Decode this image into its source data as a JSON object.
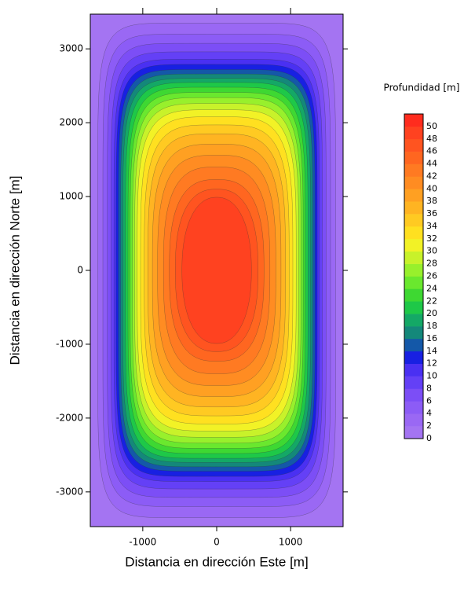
{
  "chart_data": {
    "type": "contour",
    "x_label": "Distancia en dirección Este [m]",
    "y_label": "Distancia en dirección Norte [m]",
    "colorbar_title": "Profundidad [m]",
    "xlim": [
      -1710,
      1710
    ],
    "ylim": [
      -3470,
      3470
    ],
    "xticks": [
      -1000,
      0,
      1000
    ],
    "yticks": [
      -3000,
      -2000,
      -1000,
      0,
      1000,
      2000,
      3000
    ],
    "levels": [
      0,
      2,
      4,
      6,
      8,
      10,
      12,
      14,
      16,
      18,
      20,
      22,
      24,
      26,
      28,
      30,
      32,
      34,
      36,
      38,
      40,
      42,
      44,
      46,
      48,
      50
    ],
    "colors": [
      "#a474f2",
      "#9a68f4",
      "#8c5cf6",
      "#7c4ef6",
      "#6440f6",
      "#4a30f2",
      "#1820e2",
      "#1458a8",
      "#14887a",
      "#14a866",
      "#1ec848",
      "#3ed832",
      "#6ae82e",
      "#98f02c",
      "#c8f22a",
      "#f2f226",
      "#ffe020",
      "#ffca22",
      "#ffb422",
      "#ffa022",
      "#ff8c22",
      "#ff7a22",
      "#ff6620",
      "#ff5420",
      "#ff4220",
      "#ff2c1e"
    ],
    "contours": [
      {
        "level": 2,
        "half_width": 1610,
        "half_height": 3350
      },
      {
        "level": 4,
        "half_width": 1540,
        "half_height": 3200
      },
      {
        "level": 6,
        "half_width": 1480,
        "half_height": 3075
      },
      {
        "level": 8,
        "half_width": 1430,
        "half_height": 2960
      },
      {
        "level": 10,
        "half_width": 1390,
        "half_height": 2860
      },
      {
        "level": 12,
        "half_width": 1360,
        "half_height": 2790
      },
      {
        "level": 14,
        "half_width": 1330,
        "half_height": 2720
      },
      {
        "level": 16,
        "half_width": 1300,
        "half_height": 2660
      },
      {
        "level": 18,
        "half_width": 1270,
        "half_height": 2600
      },
      {
        "level": 20,
        "half_width": 1235,
        "half_height": 2545
      },
      {
        "level": 22,
        "half_width": 1200,
        "half_height": 2480
      },
      {
        "level": 24,
        "half_width": 1170,
        "half_height": 2410
      },
      {
        "level": 26,
        "half_width": 1140,
        "half_height": 2340
      },
      {
        "level": 28,
        "half_width": 1110,
        "half_height": 2260
      },
      {
        "level": 30,
        "half_width": 1075,
        "half_height": 2175
      },
      {
        "level": 32,
        "half_width": 1030,
        "half_height": 2080
      },
      {
        "level": 34,
        "half_width": 980,
        "half_height": 1970
      },
      {
        "level": 36,
        "half_width": 930,
        "half_height": 1850
      },
      {
        "level": 38,
        "half_width": 870,
        "half_height": 1710
      },
      {
        "level": 40,
        "half_width": 800,
        "half_height": 1560
      },
      {
        "level": 42,
        "half_width": 720,
        "half_height": 1400
      },
      {
        "level": 44,
        "half_width": 640,
        "half_height": 1230
      },
      {
        "level": 46,
        "half_width": 560,
        "half_height": 1100
      },
      {
        "level": 48,
        "half_width": 470,
        "half_height": 990
      }
    ]
  }
}
